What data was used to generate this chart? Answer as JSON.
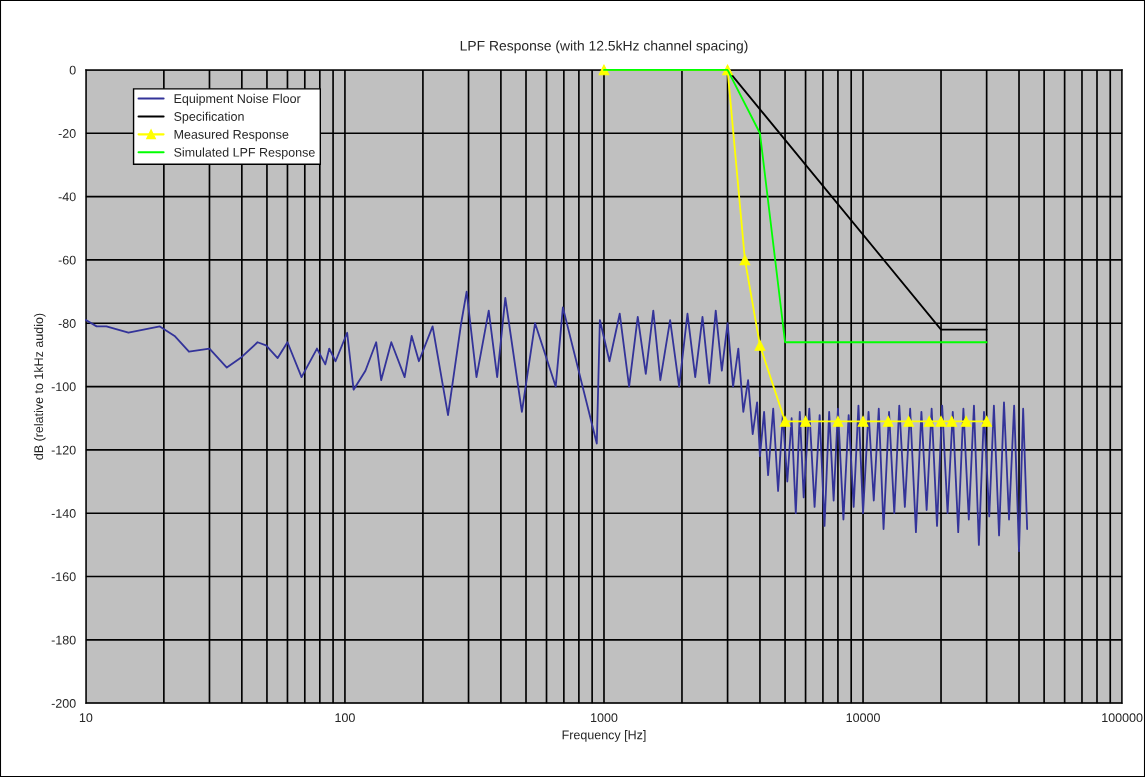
{
  "chart_data": {
    "type": "line",
    "title": "LPF Response (with 12.5kHz channel spacing)",
    "xlabel": "Frequency [Hz]",
    "ylabel": "dB (relative to 1kHz audio)",
    "log": "x",
    "xlim": [
      10,
      100000
    ],
    "xticks": [
      10,
      100,
      1000,
      10000,
      100000
    ],
    "ylim": [
      -200,
      0
    ],
    "yticks": [
      -200,
      -180,
      -160,
      -140,
      -120,
      -100,
      -80,
      -60,
      -40,
      -20,
      0
    ],
    "grid": true,
    "legend": "top left",
    "series": [
      {
        "name": "Equipment Noise Floor",
        "color": "#333399",
        "marker": "none",
        "x": [
          10,
          11,
          12,
          14.6,
          19.3,
          22,
          25,
          30,
          35,
          39.5,
          46,
          49.6,
          55,
          60,
          68,
          78,
          84,
          87,
          92,
          102,
          108,
          120,
          132,
          138,
          151,
          170,
          181,
          193,
          218,
          250,
          281,
          295,
          322,
          359,
          387,
          416,
          482,
          542,
          651,
          694,
          938,
          964,
          1050,
          1150,
          1250,
          1350,
          1450,
          1550,
          1650,
          1800,
          1950,
          2100,
          2250,
          2400,
          2550,
          2700,
          2850,
          3000,
          3150,
          3300,
          3450,
          3600,
          3750,
          3900,
          4000,
          4150,
          4300,
          4500,
          4700,
          4900,
          5100,
          5300,
          5500,
          5700,
          5900,
          6200,
          6500,
          6800,
          7100,
          7400,
          7700,
          8000,
          8400,
          8800,
          9200,
          9600,
          10000,
          10500,
          11000,
          11500,
          12000,
          12600,
          13200,
          13800,
          14500,
          15200,
          16000,
          16800,
          17600,
          18400,
          19300,
          20200,
          21200,
          22200,
          23300,
          24400,
          25600,
          26800,
          28000,
          29300,
          30700,
          32000,
          33500,
          35000,
          36600,
          38300,
          40000,
          41500,
          43000
        ],
        "values": [
          -79,
          -81,
          -81,
          -83,
          -81,
          -84,
          -89,
          -88,
          -94,
          -91,
          -86,
          -87,
          -91,
          -86,
          -97,
          -88,
          -93,
          -88,
          -92,
          -83,
          -101,
          -95,
          -86,
          -98,
          -86,
          -97,
          -84,
          -92,
          -81,
          -109,
          -80,
          -70,
          -97,
          -76,
          -97,
          -72,
          -108,
          -80,
          -100,
          -75,
          -118,
          -79,
          -92,
          -77,
          -100,
          -78,
          -96,
          -76,
          -98,
          -79,
          -100,
          -77,
          -97,
          -78,
          -99,
          -76,
          -95,
          -80,
          -100,
          -88,
          -108,
          -98,
          -115,
          -105,
          -122,
          -108,
          -128,
          -107,
          -133,
          -109,
          -130,
          -110,
          -140,
          -108,
          -135,
          -107,
          -138,
          -109,
          -144,
          -108,
          -136,
          -107,
          -142,
          -109,
          -138,
          -106,
          -140,
          -108,
          -136,
          -107,
          -145,
          -108,
          -140,
          -106,
          -138,
          -107,
          -146,
          -108,
          -139,
          -107,
          -144,
          -106,
          -140,
          -108,
          -146,
          -107,
          -142,
          -106,
          -150,
          -108,
          -141,
          -106,
          -147,
          -105,
          -142,
          -106,
          -152,
          -107,
          -145
        ]
      },
      {
        "name": "Specification",
        "color": "#000000",
        "marker": "none",
        "x": [
          1000,
          3000,
          20000,
          30000
        ],
        "values": [
          0,
          0,
          -82,
          -82
        ]
      },
      {
        "name": "Measured Response",
        "color": "#ffff00",
        "marker": "triangle",
        "x": [
          1000,
          3000,
          3500,
          4000,
          5000,
          6000,
          8000,
          10000,
          12500,
          15000,
          18000,
          20000,
          22000,
          25000,
          30000
        ],
        "values": [
          0,
          0,
          -60,
          -87,
          -111,
          -111,
          -111,
          -111,
          -111,
          -111,
          -111,
          -111,
          -111,
          -111,
          -111
        ]
      },
      {
        "name": "Simulated LPF Response",
        "color": "#00ff00",
        "marker": "none",
        "x": [
          1000,
          3000,
          4000,
          5000,
          30000
        ],
        "values": [
          0,
          0,
          -20,
          -86,
          -86
        ]
      }
    ]
  }
}
